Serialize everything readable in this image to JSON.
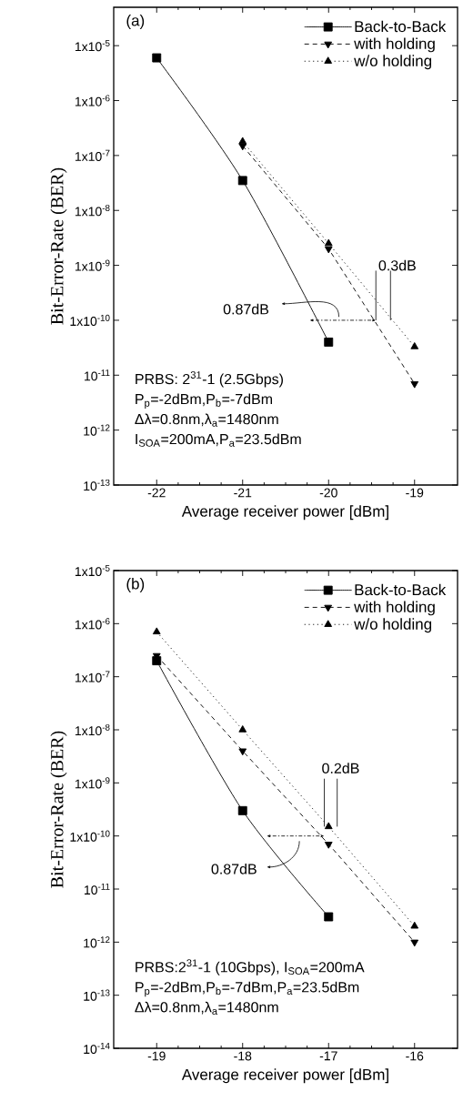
{
  "chart_data": [
    {
      "type": "line",
      "log": "y",
      "xlabel": "Average receiver power [dBm]",
      "ylabel": "Bit-Error-Rate (BER)",
      "xlim": [
        -22.5,
        -18.5
      ],
      "xticks": [
        -22,
        -21,
        -20,
        -19
      ],
      "ylim": [
        1e-13,
        5e-05
      ],
      "yticks": [
        {
          "value": 1e-05,
          "label": "1x10$^{-5}$"
        },
        {
          "value": 1e-06,
          "label": "1x10$^{-6}$"
        },
        {
          "value": 1e-07,
          "label": "1x10$^{-7}$"
        },
        {
          "value": 1e-08,
          "label": "1x10$^{-8}$"
        },
        {
          "value": 1e-09,
          "label": "1x10$^{-9}$"
        },
        {
          "value": 1e-10,
          "label": "1x10$^{-10}$"
        },
        {
          "value": 1e-11,
          "label": "10$^{-11}$"
        },
        {
          "value": 1e-12,
          "label": "10$^{-12}$"
        },
        {
          "value": 1e-13,
          "label": "10$^{-13}$"
        }
      ],
      "legend": "top right",
      "series": [
        {
          "name": "Back-to-Back",
          "color": "#000000",
          "marker": "square",
          "line_style": "solid",
          "x": [
            -22,
            -21,
            -20
          ],
          "values": [
            6e-06,
            3.5e-08,
            4e-11
          ]
        },
        {
          "name": "with holding",
          "color": "#000000",
          "marker": "triangle-down",
          "line_style": "dashed",
          "x": [
            -21,
            -20,
            -19
          ],
          "values": [
            1.5e-07,
            2e-09,
            7e-12
          ]
        },
        {
          "name": "w/o holding",
          "color": "#000000",
          "marker": "triangle",
          "line_style": "dotted",
          "x": [
            -21,
            -20,
            -19
          ],
          "values": [
            1.8e-07,
            2.5e-09,
            3.3e-11
          ]
        }
      ],
      "annotations": [
        "(a)",
        "0.87dB",
        {
          "text": "0.3dB",
          "x": -19.45,
          "y": 1e-10
        },
        "PRBS: 2$^{31}$-1 (2.5Gbps)",
        "P$_{p}$=-2dBm,P$_{b}$=-7dBm",
        "Δλ=0.8nm,λ$_{a}$=1480nm",
        "I$_{SOA}$=200mA,P$_{a}$=23.5dBm"
      ]
    },
    {
      "type": "line",
      "log": "y",
      "xlabel": "Average receiver power [dBm]",
      "ylabel": "Bit-Error-Rate (BER)",
      "xlim": [
        -19.5,
        -15.5
      ],
      "xticks": [
        -19,
        -18,
        -17,
        -16
      ],
      "ylim": [
        1e-14,
        1e-05
      ],
      "yticks": [
        {
          "value": 1e-05,
          "label": "1x10$^{-5}$"
        },
        {
          "value": 1e-06,
          "label": "1x10$^{-6}$"
        },
        {
          "value": 1e-07,
          "label": "1x10$^{-7}$"
        },
        {
          "value": 1e-08,
          "label": "1x10$^{-8}$"
        },
        {
          "value": 1e-09,
          "label": "1x10$^{-9}$"
        },
        {
          "value": 1e-10,
          "label": "1x10$^{-10}$"
        },
        {
          "value": 1e-11,
          "label": "10$^{-11}$"
        },
        {
          "value": 1e-12,
          "label": "10$^{-12}$"
        },
        {
          "value": 1e-13,
          "label": "10$^{-13}$"
        },
        {
          "value": 1e-14,
          "label": "10$^{-14}$"
        }
      ],
      "legend": "top right",
      "series": [
        {
          "name": "Back-to-Back",
          "color": "#000000",
          "marker": "square",
          "line_style": "solid",
          "x": [
            -19,
            -18,
            -17
          ],
          "values": [
            2e-07,
            3e-10,
            3e-12
          ]
        },
        {
          "name": "with holding",
          "color": "#000000",
          "marker": "triangle-down",
          "line_style": "dashed",
          "x": [
            -19,
            -18,
            -17,
            -16
          ],
          "values": [
            2.5e-07,
            4e-09,
            7e-11,
            1e-12
          ]
        },
        {
          "name": "w/o holding",
          "color": "#000000",
          "marker": "triangle",
          "line_style": "dotted",
          "x": [
            -19,
            -18,
            -17,
            -16
          ],
          "values": [
            7e-07,
            1e-08,
            1.5e-10,
            2e-12
          ]
        }
      ],
      "annotations": [
        "(b)",
        "0.87dB",
        {
          "text": "0.2dB",
          "x": -17.05,
          "y": 1.5e-10
        },
        "PRBS:2$^{31}$-1 (10Gbps), I$_{SOA}$=200mA",
        "P$_{p}$=-2dBm,P$_{b}$=-7dBm,P$_{a}$=23.5dBm",
        "Δλ=0.8nm,λ$_{a}$=1480nm"
      ]
    }
  ]
}
